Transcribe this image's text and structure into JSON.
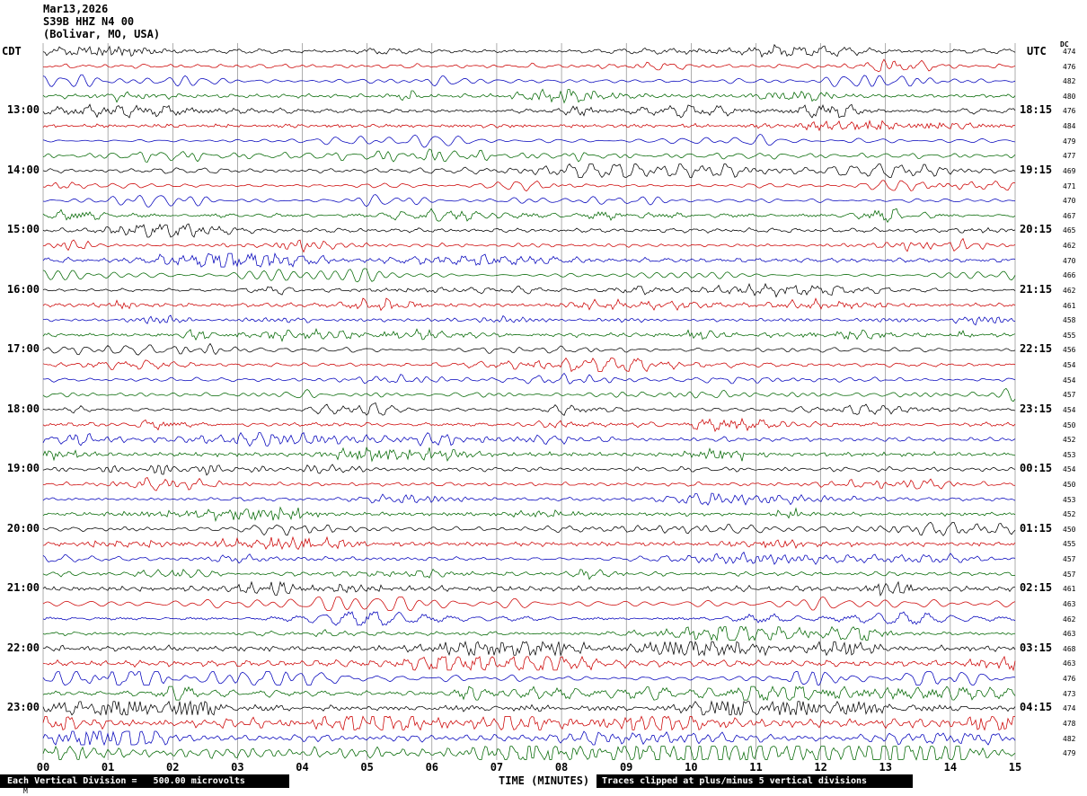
{
  "header": {
    "date": "Mar13,2026",
    "station": "S39B HHZ N4 00",
    "location": "(Bolivar, MO, USA)"
  },
  "axes": {
    "left_tz": "CDT",
    "right_tz": "UTC",
    "dc_label": "DC",
    "x_title": "TIME (MINUTES)",
    "minute_labels": [
      "00",
      "01",
      "02",
      "03",
      "04",
      "05",
      "06",
      "07",
      "08",
      "09",
      "10",
      "11",
      "12",
      "13",
      "14",
      "15"
    ]
  },
  "footer": {
    "left": "Each Vertical Division =   500.00 microvolts",
    "right": "Traces clipped at plus/minus 5 vertical divisions",
    "corner_mark": "M"
  },
  "chart_data": {
    "type": "line",
    "subtype": "helicorder-seismogram",
    "title": "S39B HHZ N4 00 (Bolivar, MO, USA) Mar13,2026",
    "x_range_minutes": [
      0,
      15
    ],
    "minutes_per_row": 15,
    "rows": 48,
    "row_colors_cycle": [
      "#000000",
      "#cc0000",
      "#0000bb",
      "#006600"
    ],
    "hour_label_rows": [
      4,
      8,
      12,
      16,
      20,
      24,
      28,
      32,
      36,
      40,
      44
    ],
    "left_time_labels": [
      "13:00",
      "14:00",
      "15:00",
      "16:00",
      "17:00",
      "18:00",
      "19:00",
      "20:00",
      "21:00",
      "22:00",
      "23:00"
    ],
    "right_time_labels": [
      "18:15",
      "19:15",
      "20:15",
      "21:15",
      "22:15",
      "23:15",
      "00:15",
      "01:15",
      "02:15",
      "03:15",
      "04:15"
    ],
    "dc_values": [
      474,
      476,
      482,
      480,
      476,
      484,
      479,
      477,
      469,
      471,
      470,
      467,
      465,
      462,
      470,
      466,
      462,
      461,
      458,
      455,
      456,
      454,
      454,
      457,
      454,
      450,
      452,
      453,
      454,
      450,
      453,
      452,
      450,
      455,
      457,
      457,
      461,
      463,
      462,
      463,
      468,
      463,
      476,
      473,
      474,
      478,
      482,
      479
    ],
    "amplitudes": [
      1,
      1,
      1,
      1,
      1,
      1,
      1,
      1,
      1,
      1,
      1,
      1,
      1,
      1,
      1,
      1,
      0.9,
      0.9,
      0.9,
      0.9,
      0.9,
      0.9,
      0.9,
      0.9,
      0.9,
      0.9,
      0.9,
      0.9,
      0.9,
      0.9,
      0.9,
      0.9,
      1,
      1,
      1,
      1,
      1.1,
      1.1,
      1.1,
      1.1,
      1.4,
      1.4,
      1.5,
      1.5,
      1.8,
      1.9,
      2.0,
      2.0
    ],
    "microvolts_per_division": "500.00",
    "clip_divisions": 5,
    "grid": "vertical-minute-lines"
  }
}
